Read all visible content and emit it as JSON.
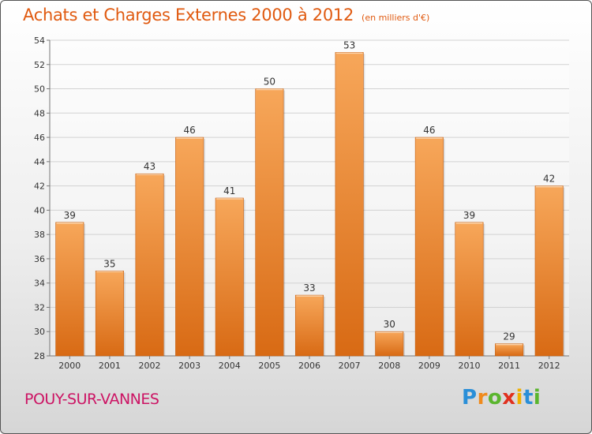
{
  "chart_data": {
    "type": "bar",
    "title": "Achats et Charges Externes 2000 à 2012",
    "unit": "(en milliers d'€)",
    "categories": [
      "2000",
      "2001",
      "2002",
      "2003",
      "2004",
      "2005",
      "2006",
      "2007",
      "2008",
      "2009",
      "2010",
      "2011",
      "2012"
    ],
    "values": [
      39,
      35,
      43,
      46,
      41,
      50,
      33,
      53,
      30,
      46,
      39,
      29,
      42
    ],
    "ylim": [
      28,
      54
    ],
    "yticks": [
      28,
      30,
      32,
      34,
      36,
      38,
      40,
      42,
      44,
      46,
      48,
      50,
      52,
      54
    ],
    "grid": true,
    "bar_color": "#f08a30"
  },
  "place": "POUY-SUR-VANNES",
  "brand": {
    "letters": [
      "P",
      "r",
      "o",
      "x",
      "i",
      "t",
      "i"
    ],
    "colors": [
      "#2a8fd8",
      "#f08a1c",
      "#5ab52e",
      "#e0301e",
      "#f0b000",
      "#2a8fd8",
      "#5ab52e"
    ]
  }
}
